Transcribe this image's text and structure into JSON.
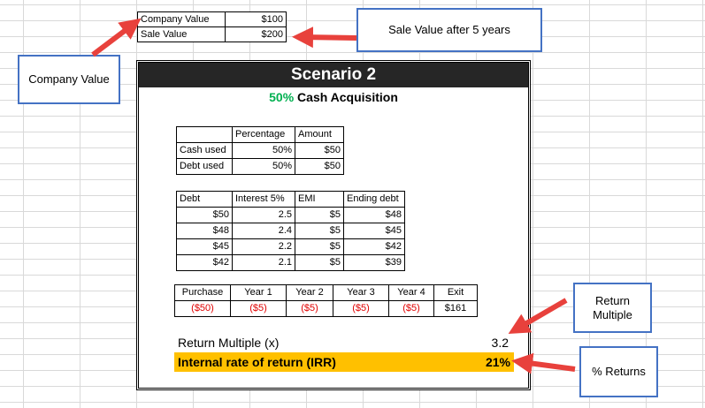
{
  "top_table": {
    "rows": [
      {
        "label": "Company Value",
        "value": "$100"
      },
      {
        "label": "Sale Value",
        "value": "$200"
      }
    ]
  },
  "scenario": {
    "title": "Scenario 2",
    "subtitle_pct": "50%",
    "subtitle_text": "Cash Acquisition"
  },
  "mix_table": {
    "headers": [
      "",
      "Percentage",
      "Amount"
    ],
    "rows": [
      {
        "label": "Cash used",
        "pct": "50%",
        "amount": "$50"
      },
      {
        "label": "Debt used",
        "pct": "50%",
        "amount": "$50"
      }
    ]
  },
  "debt_table": {
    "headers": [
      "Debt",
      "Interest 5%",
      "EMI",
      "Ending debt"
    ],
    "rows": [
      [
        "$50",
        "2.5",
        "$5",
        "$48"
      ],
      [
        "$48",
        "2.4",
        "$5",
        "$45"
      ],
      [
        "$45",
        "2.2",
        "$5",
        "$42"
      ],
      [
        "$42",
        "2.1",
        "$5",
        "$39"
      ]
    ]
  },
  "cash_table": {
    "headers": [
      "Purchase",
      "Year 1",
      "Year 2",
      "Year 3",
      "Year 4",
      "Exit"
    ],
    "values": [
      "($50)",
      "($5)",
      "($5)",
      "($5)",
      "($5)",
      "$161"
    ]
  },
  "results": {
    "return_multiple_label": "Return Multiple (x)",
    "return_multiple_value": "3.2",
    "irr_label": "Internal rate of return (IRR)",
    "irr_value": "21%"
  },
  "callouts": {
    "company_value": "Company Value",
    "sale_value": "Sale Value after 5 years",
    "return_multiple": "Return Multiple",
    "returns": "% Returns"
  },
  "colors": {
    "header_bg": "#262626",
    "irr_bg": "#ffc000",
    "pct_green": "#00b050",
    "negative_red": "#e00000",
    "callout_border": "#4472c4",
    "arrow_red": "#e8413c"
  }
}
